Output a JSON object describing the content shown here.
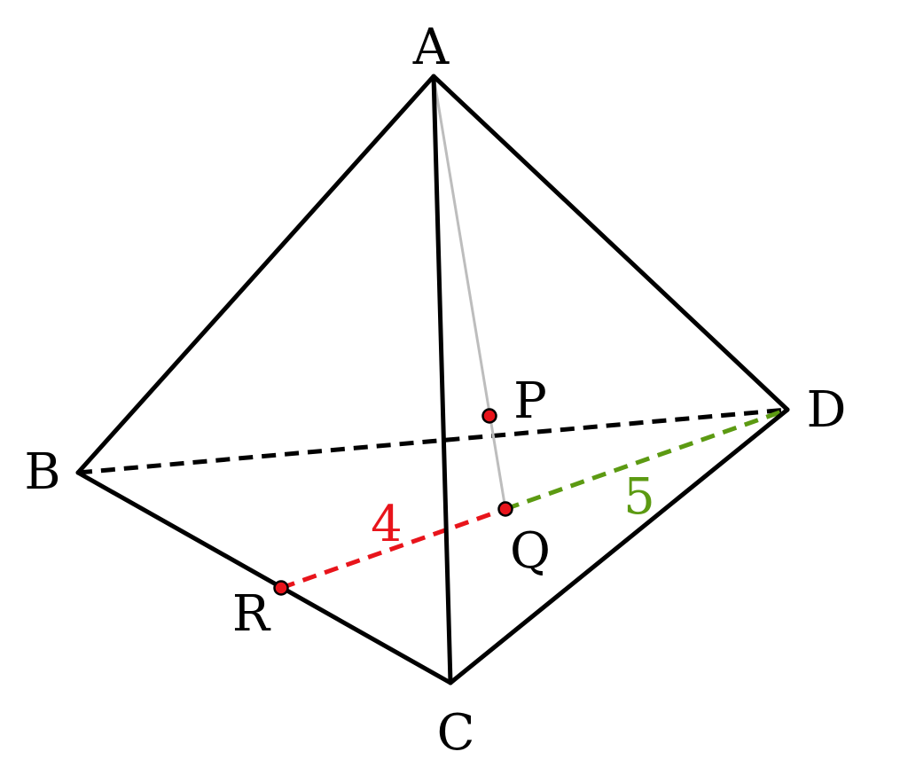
{
  "labels": {
    "A": "A",
    "B": "B",
    "C": "C",
    "D": "D",
    "P": "P",
    "Q": "Q",
    "R": "R"
  },
  "lengths": {
    "RQ": "4",
    "QD": "5"
  },
  "colors": {
    "edge": "#000000",
    "rq_segment": "#e8141b",
    "qd_segment": "#5c9a12",
    "aq_line": "#bdbdbd",
    "point_fill": "#e8141b"
  }
}
